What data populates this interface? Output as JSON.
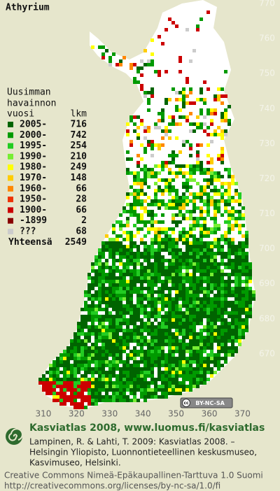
{
  "map": {
    "title": "Athyrium",
    "legend_heading": [
      "Uusimman",
      "havainnon",
      "vuosi"
    ],
    "count_heading": "lkm",
    "series": [
      {
        "name": "2005-",
        "color": "#006400",
        "value": 716
      },
      {
        "name": "2000-",
        "color": "#009a00",
        "value": 742
      },
      {
        "name": "1995-",
        "color": "#22cc22",
        "value": 254
      },
      {
        "name": "1990-",
        "color": "#77ee33",
        "value": 210
      },
      {
        "name": "1980-",
        "color": "#ffff00",
        "value": 249
      },
      {
        "name": "1970-",
        "color": "#ffcc00",
        "value": 148
      },
      {
        "name": "1960-",
        "color": "#ff8800",
        "value": 66
      },
      {
        "name": "1950-",
        "color": "#ee3300",
        "value": 28
      },
      {
        "name": "1900-",
        "color": "#cc0000",
        "value": 66
      },
      {
        "name": "-1899",
        "color": "#880000",
        "value": 2
      },
      {
        "name": "???",
        "color": "#cccccc",
        "value": 68
      }
    ],
    "total_label": "Yhteensä",
    "total": 2549,
    "yticks": [
      770,
      760,
      750,
      740,
      730,
      720,
      710,
      700,
      690,
      680,
      670
    ],
    "ylim": [
      771,
      659.2
    ],
    "xticks": [
      310,
      320,
      330,
      340,
      350,
      360,
      370
    ],
    "xlim": [
      309.6,
      379.6
    ],
    "badge": "BY-NC-SA",
    "badge_cc": "cc"
  },
  "footer": {
    "brand": "Kasviatlas 2008, www.luomus.fi/kasviatlas",
    "citation": [
      "Lampinen, R. & Lahti, T. 2009: Kasviatlas 2008. –",
      "Helsingin Yliopisto, Luonnontieteellinen keskusmuseo,",
      "Kasvimuseo, Helsinki."
    ],
    "license": [
      "Creative Commons Nimeä-Epäkaupallinen-Tarttuva 1.0 Suomi",
      "http://creativecommons.org/licenses/by-nc-sa/1.0/fi"
    ]
  }
}
